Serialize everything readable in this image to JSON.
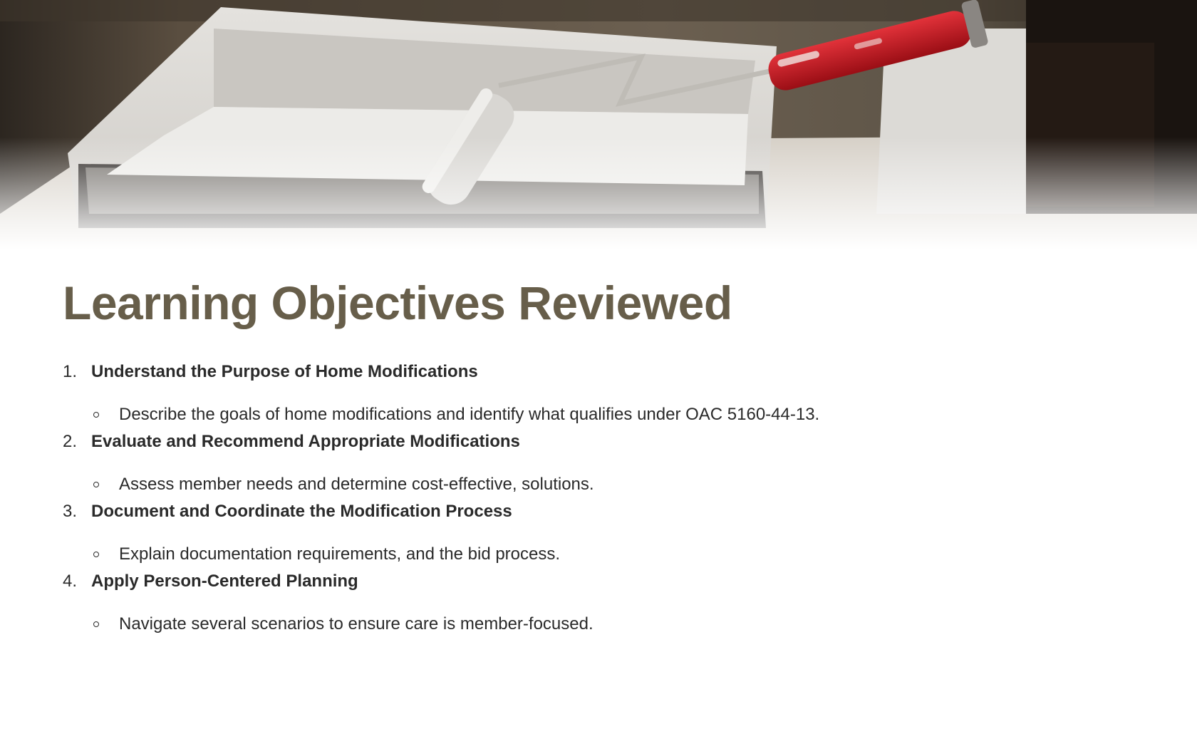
{
  "hero": {
    "image": "paint-tray-and-roller-photo",
    "accent_color": "#c0141d"
  },
  "title": "Learning Objectives Reviewed",
  "colors": {
    "title": "#675e4a",
    "text": "#2a2a2a"
  },
  "objectives": [
    {
      "number": "1.",
      "title": "Understand the Purpose of Home Modifications",
      "detail": "Describe the goals of home modifications and identify what qualifies under OAC 5160-44-13."
    },
    {
      "number": "2.",
      "title": "Evaluate and Recommend Appropriate Modifications",
      "detail": "Assess member needs and determine cost-effective, solutions."
    },
    {
      "number": "3.",
      "title": "Document and Coordinate the Modification Process",
      "detail": "Explain documentation requirements, and the bid process."
    },
    {
      "number": "4.",
      "title": "Apply Person-Centered Planning",
      "detail": "Navigate several scenarios to ensure care is member-focused."
    }
  ]
}
